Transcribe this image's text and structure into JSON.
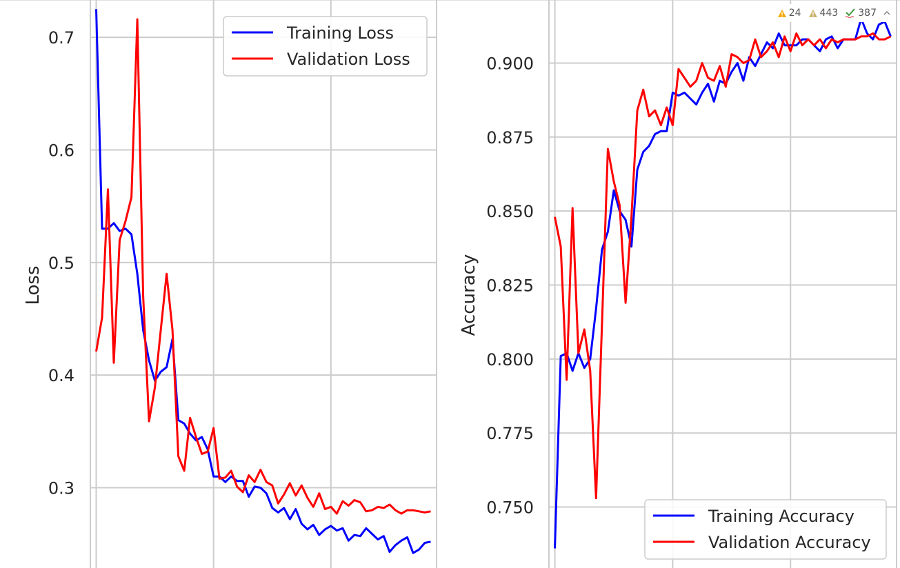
{
  "status_bar": {
    "warnings_count": "24",
    "weak_warnings_count": "443",
    "typos_count": "387",
    "colors": {
      "warning": "#f2a900",
      "weak_warning": "#c9b36b",
      "typo": "#3c9a3c"
    }
  },
  "chart_data": [
    {
      "type": "line",
      "title": "",
      "xlabel": "",
      "ylabel": "Loss",
      "ylim": [
        0.225,
        0.735
      ],
      "xlim": [
        -1,
        58
      ],
      "grid": true,
      "legend_position": "top-right",
      "yticks": [
        0.3,
        0.4,
        0.5,
        0.6,
        0.7
      ],
      "ytick_labels": [
        "0.3",
        "0.4",
        "0.5",
        "0.6",
        "0.7"
      ],
      "xticks": [
        0,
        20,
        40
      ],
      "x": [
        0,
        1,
        2,
        3,
        4,
        5,
        6,
        7,
        8,
        9,
        10,
        11,
        12,
        13,
        14,
        15,
        16,
        17,
        18,
        19,
        20,
        21,
        22,
        23,
        24,
        25,
        26,
        27,
        28,
        29,
        30,
        31,
        32,
        33,
        34,
        35,
        36,
        37,
        38,
        39,
        40,
        41,
        42,
        43,
        44,
        45,
        46,
        47,
        48,
        49,
        50,
        51,
        52,
        53,
        54,
        55,
        56,
        57
      ],
      "series": [
        {
          "name": "Training Loss",
          "color": "#0000ff",
          "values": [
            0.725,
            0.53,
            0.53,
            0.535,
            0.528,
            0.53,
            0.525,
            0.49,
            0.44,
            0.413,
            0.395,
            0.403,
            0.407,
            0.432,
            0.36,
            0.357,
            0.348,
            0.342,
            0.345,
            0.334,
            0.31,
            0.31,
            0.305,
            0.31,
            0.306,
            0.306,
            0.292,
            0.301,
            0.3,
            0.295,
            0.282,
            0.278,
            0.282,
            0.272,
            0.281,
            0.268,
            0.263,
            0.267,
            0.258,
            0.263,
            0.266,
            0.262,
            0.264,
            0.253,
            0.258,
            0.257,
            0.264,
            0.259,
            0.254,
            0.257,
            0.243,
            0.249,
            0.253,
            0.256,
            0.242,
            0.245,
            0.251,
            0.252
          ]
        },
        {
          "name": "Validation Loss",
          "color": "#ff0000",
          "values": [
            0.421,
            0.451,
            0.565,
            0.411,
            0.52,
            0.537,
            0.558,
            0.716,
            0.47,
            0.359,
            0.389,
            0.44,
            0.49,
            0.44,
            0.328,
            0.315,
            0.362,
            0.345,
            0.33,
            0.332,
            0.353,
            0.308,
            0.309,
            0.315,
            0.301,
            0.296,
            0.311,
            0.305,
            0.316,
            0.305,
            0.302,
            0.286,
            0.294,
            0.304,
            0.293,
            0.302,
            0.291,
            0.283,
            0.295,
            0.281,
            0.283,
            0.277,
            0.288,
            0.284,
            0.289,
            0.287,
            0.279,
            0.28,
            0.283,
            0.282,
            0.285,
            0.28,
            0.277,
            0.28,
            0.28,
            0.279,
            0.278,
            0.279
          ]
        }
      ]
    },
    {
      "type": "line",
      "title": "",
      "xlabel": "",
      "ylabel": "Accuracy",
      "ylim": [
        0.728,
        0.922
      ],
      "xlim": [
        -1,
        58
      ],
      "grid": true,
      "legend_position": "bottom-right",
      "yticks": [
        0.75,
        0.775,
        0.8,
        0.825,
        0.85,
        0.875,
        0.9
      ],
      "ytick_labels": [
        "0.750",
        "0.775",
        "0.800",
        "0.825",
        "0.850",
        "0.875",
        "0.900"
      ],
      "xticks": [
        0,
        20,
        40
      ],
      "x": [
        0,
        1,
        2,
        3,
        4,
        5,
        6,
        7,
        8,
        9,
        10,
        11,
        12,
        13,
        14,
        15,
        16,
        17,
        18,
        19,
        20,
        21,
        22,
        23,
        24,
        25,
        26,
        27,
        28,
        29,
        30,
        31,
        32,
        33,
        34,
        35,
        36,
        37,
        38,
        39,
        40,
        41,
        42,
        43,
        44,
        45,
        46,
        47,
        48,
        49,
        50,
        51,
        52,
        53,
        54,
        55,
        56,
        57
      ],
      "series": [
        {
          "name": "Training Accuracy",
          "color": "#0000ff",
          "values": [
            0.736,
            0.801,
            0.802,
            0.796,
            0.802,
            0.797,
            0.8,
            0.817,
            0.837,
            0.843,
            0.857,
            0.85,
            0.847,
            0.838,
            0.864,
            0.87,
            0.872,
            0.876,
            0.877,
            0.877,
            0.89,
            0.889,
            0.89,
            0.888,
            0.886,
            0.89,
            0.893,
            0.887,
            0.894,
            0.893,
            0.897,
            0.9,
            0.894,
            0.902,
            0.899,
            0.903,
            0.907,
            0.905,
            0.91,
            0.906,
            0.906,
            0.906,
            0.908,
            0.908,
            0.906,
            0.904,
            0.908,
            0.909,
            0.905,
            0.908,
            0.908,
            0.908,
            0.915,
            0.91,
            0.908,
            0.913,
            0.914,
            0.909
          ]
        },
        {
          "name": "Validation Accuracy",
          "color": "#ff0000",
          "values": [
            0.848,
            0.838,
            0.793,
            0.851,
            0.802,
            0.81,
            0.796,
            0.753,
            0.812,
            0.871,
            0.86,
            0.852,
            0.819,
            0.848,
            0.884,
            0.891,
            0.882,
            0.884,
            0.879,
            0.885,
            0.879,
            0.898,
            0.895,
            0.892,
            0.894,
            0.9,
            0.895,
            0.894,
            0.899,
            0.892,
            0.903,
            0.902,
            0.9,
            0.901,
            0.908,
            0.902,
            0.904,
            0.907,
            0.902,
            0.909,
            0.904,
            0.91,
            0.906,
            0.908,
            0.906,
            0.908,
            0.905,
            0.908,
            0.907,
            0.908,
            0.908,
            0.908,
            0.909,
            0.909,
            0.91,
            0.908,
            0.908,
            0.909
          ]
        }
      ]
    }
  ]
}
